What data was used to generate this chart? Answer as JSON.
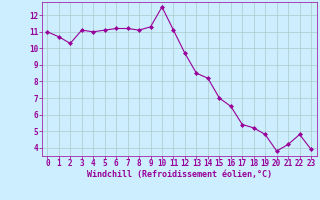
{
  "x": [
    0,
    1,
    2,
    3,
    4,
    5,
    6,
    7,
    8,
    9,
    10,
    11,
    12,
    13,
    14,
    15,
    16,
    17,
    18,
    19,
    20,
    21,
    22,
    23
  ],
  "y": [
    11.0,
    10.7,
    10.3,
    11.1,
    11.0,
    11.1,
    11.2,
    11.2,
    11.1,
    11.3,
    12.5,
    11.1,
    9.7,
    8.5,
    8.2,
    7.0,
    6.5,
    5.4,
    5.2,
    4.8,
    3.8,
    4.2,
    4.8,
    3.9
  ],
  "line_color": "#990099",
  "marker": "D",
  "marker_size": 2,
  "bg_color": "#cceeff",
  "grid_color": "#aacccc",
  "xlabel": "Windchill (Refroidissement éolien,°C)",
  "xlabel_color": "#990099",
  "tick_color": "#990099",
  "xlim": [
    -0.5,
    23.5
  ],
  "ylim": [
    3.5,
    12.8
  ],
  "yticks": [
    4,
    5,
    6,
    7,
    8,
    9,
    10,
    11,
    12
  ],
  "xticks": [
    0,
    1,
    2,
    3,
    4,
    5,
    6,
    7,
    8,
    9,
    10,
    11,
    12,
    13,
    14,
    15,
    16,
    17,
    18,
    19,
    20,
    21,
    22,
    23
  ],
  "tick_fontsize": 5.5,
  "xlabel_fontsize": 6.0
}
